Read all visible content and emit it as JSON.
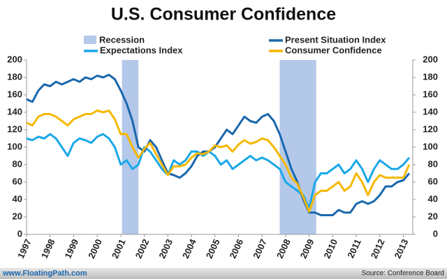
{
  "chart_data": {
    "type": "line",
    "title": "U.S. Consumer Confidence",
    "x": [
      1997,
      1997.25,
      1997.5,
      1997.75,
      1998,
      1998.25,
      1998.5,
      1998.75,
      1999,
      1999.25,
      1999.5,
      1999.75,
      2000,
      2000.25,
      2000.5,
      2000.75,
      2001,
      2001.25,
      2001.5,
      2001.75,
      2002,
      2002.25,
      2002.5,
      2002.75,
      2003,
      2003.25,
      2003.5,
      2003.75,
      2004,
      2004.25,
      2004.5,
      2004.75,
      2005,
      2005.25,
      2005.5,
      2005.75,
      2006,
      2006.25,
      2006.5,
      2006.75,
      2007,
      2007.25,
      2007.5,
      2007.75,
      2008,
      2008.25,
      2008.5,
      2008.75,
      2009,
      2009.25,
      2009.5,
      2009.75,
      2010,
      2010.25,
      2010.5,
      2010.75,
      2011,
      2011.25,
      2011.5,
      2011.75,
      2012,
      2012.25,
      2012.5,
      2012.75,
      2013,
      2013.25
    ],
    "recessions": {
      "name": "Recession",
      "color": "#b4c8ea",
      "spans": [
        [
          2001.05,
          2001.75
        ],
        [
          2007.75,
          2009.3
        ]
      ]
    },
    "series": [
      {
        "name": "Expectations Index",
        "color": "#1aa8e8",
        "values": [
          110,
          108,
          112,
          110,
          115,
          110,
          100,
          90,
          105,
          110,
          108,
          105,
          112,
          115,
          110,
          100,
          80,
          85,
          75,
          80,
          100,
          95,
          85,
          75,
          68,
          85,
          80,
          85,
          95,
          95,
          90,
          95,
          90,
          80,
          85,
          75,
          80,
          85,
          90,
          85,
          88,
          85,
          80,
          75,
          60,
          55,
          50,
          45,
          30,
          60,
          70,
          70,
          75,
          80,
          70,
          75,
          85,
          75,
          60,
          75,
          85,
          80,
          75,
          75,
          80,
          88
        ]
      },
      {
        "name": "Present Situation Index",
        "color": "#1a67ad",
        "values": [
          155,
          152,
          165,
          172,
          170,
          175,
          172,
          175,
          178,
          175,
          180,
          178,
          182,
          180,
          183,
          178,
          165,
          150,
          130,
          100,
          95,
          108,
          100,
          85,
          70,
          68,
          65,
          70,
          78,
          90,
          95,
          95,
          100,
          110,
          120,
          115,
          125,
          135,
          130,
          128,
          135,
          138,
          130,
          115,
          95,
          75,
          60,
          40,
          25,
          25,
          22,
          22,
          22,
          28,
          25,
          25,
          35,
          38,
          35,
          38,
          45,
          55,
          55,
          60,
          62,
          70
        ]
      },
      {
        "name": "Consumer Confidence",
        "color": "#f5b800",
        "values": [
          128,
          125,
          135,
          138,
          138,
          135,
          130,
          125,
          132,
          135,
          138,
          138,
          142,
          140,
          142,
          132,
          115,
          115,
          100,
          88,
          98,
          105,
          92,
          80,
          68,
          78,
          78,
          80,
          88,
          93,
          92,
          95,
          102,
          100,
          102,
          95,
          103,
          108,
          104,
          106,
          110,
          108,
          100,
          90,
          80,
          65,
          58,
          43,
          26,
          45,
          50,
          50,
          55,
          60,
          50,
          55,
          70,
          60,
          45,
          60,
          68,
          65,
          65,
          65,
          65,
          80
        ]
      }
    ],
    "xlim": [
      1997,
      2013.4
    ],
    "xticks": [
      1997,
      1998,
      1999,
      2000,
      2001,
      2002,
      2003,
      2004,
      2005,
      2006,
      2007,
      2008,
      2009,
      2010,
      2011,
      2012,
      2013
    ],
    "ylim": [
      0,
      200
    ],
    "yticks": [
      0,
      20,
      40,
      60,
      80,
      100,
      120,
      140,
      160,
      180,
      200
    ],
    "y2lim": [
      0,
      200
    ],
    "y2ticks": [
      0,
      20,
      40,
      60,
      80,
      100,
      120,
      140,
      160,
      180,
      200
    ],
    "grid": false
  },
  "footer": {
    "left": "www.FloatingPath.com",
    "right": "Source: Conference Board"
  }
}
